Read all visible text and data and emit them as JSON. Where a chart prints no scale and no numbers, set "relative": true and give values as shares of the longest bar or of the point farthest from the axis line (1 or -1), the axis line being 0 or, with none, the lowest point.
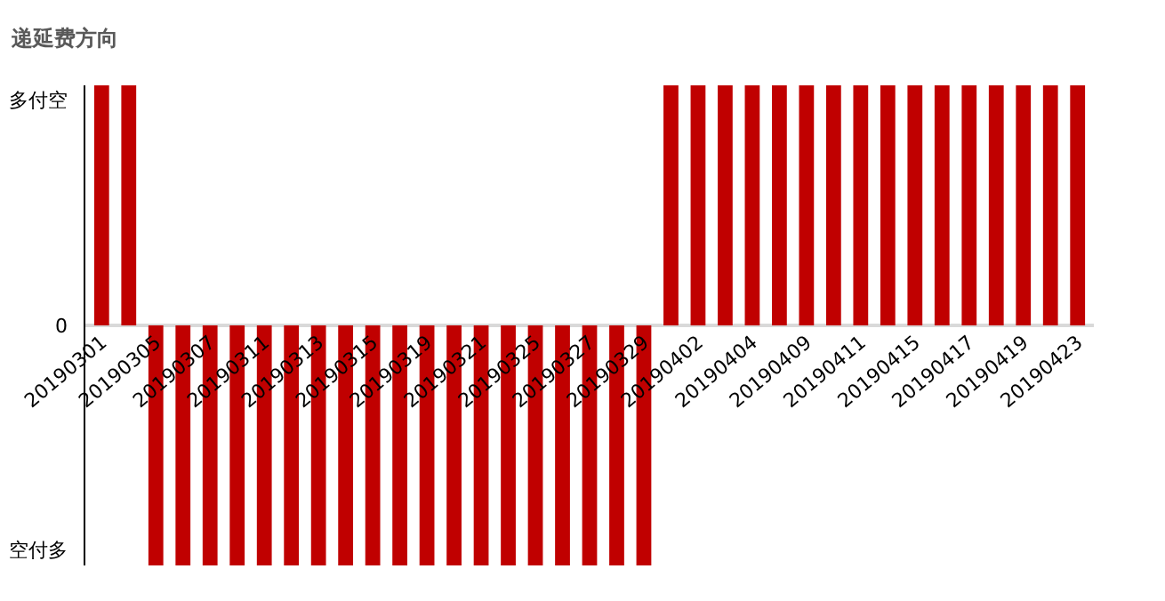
{
  "chart_data": {
    "type": "bar",
    "title": "递延费方向",
    "categories": [
      "20190301",
      null,
      "20190305",
      null,
      "20190307",
      null,
      "20190311",
      null,
      "20190313",
      null,
      "20190315",
      null,
      "20190319",
      null,
      "20190321",
      null,
      "20190325",
      null,
      "20190327",
      null,
      "20190329",
      null,
      "20190402",
      null,
      "20190404",
      null,
      "20190409",
      null,
      "20190411",
      null,
      "20190415",
      null,
      "20190417",
      null,
      "20190419",
      null,
      "20190423"
    ],
    "values": [
      1,
      1,
      -1,
      -1,
      -1,
      -1,
      -1,
      -1,
      -1,
      -1,
      -1,
      -1,
      -1,
      -1,
      -1,
      -1,
      -1,
      -1,
      -1,
      -1,
      -1,
      1,
      1,
      1,
      1,
      1,
      1,
      1,
      1,
      1,
      1,
      1,
      1,
      1,
      1,
      1,
      1
    ],
    "color": "#c00000",
    "relative": true,
    "annotations": [
      "多付空",
      "0",
      "空付多"
    ]
  }
}
